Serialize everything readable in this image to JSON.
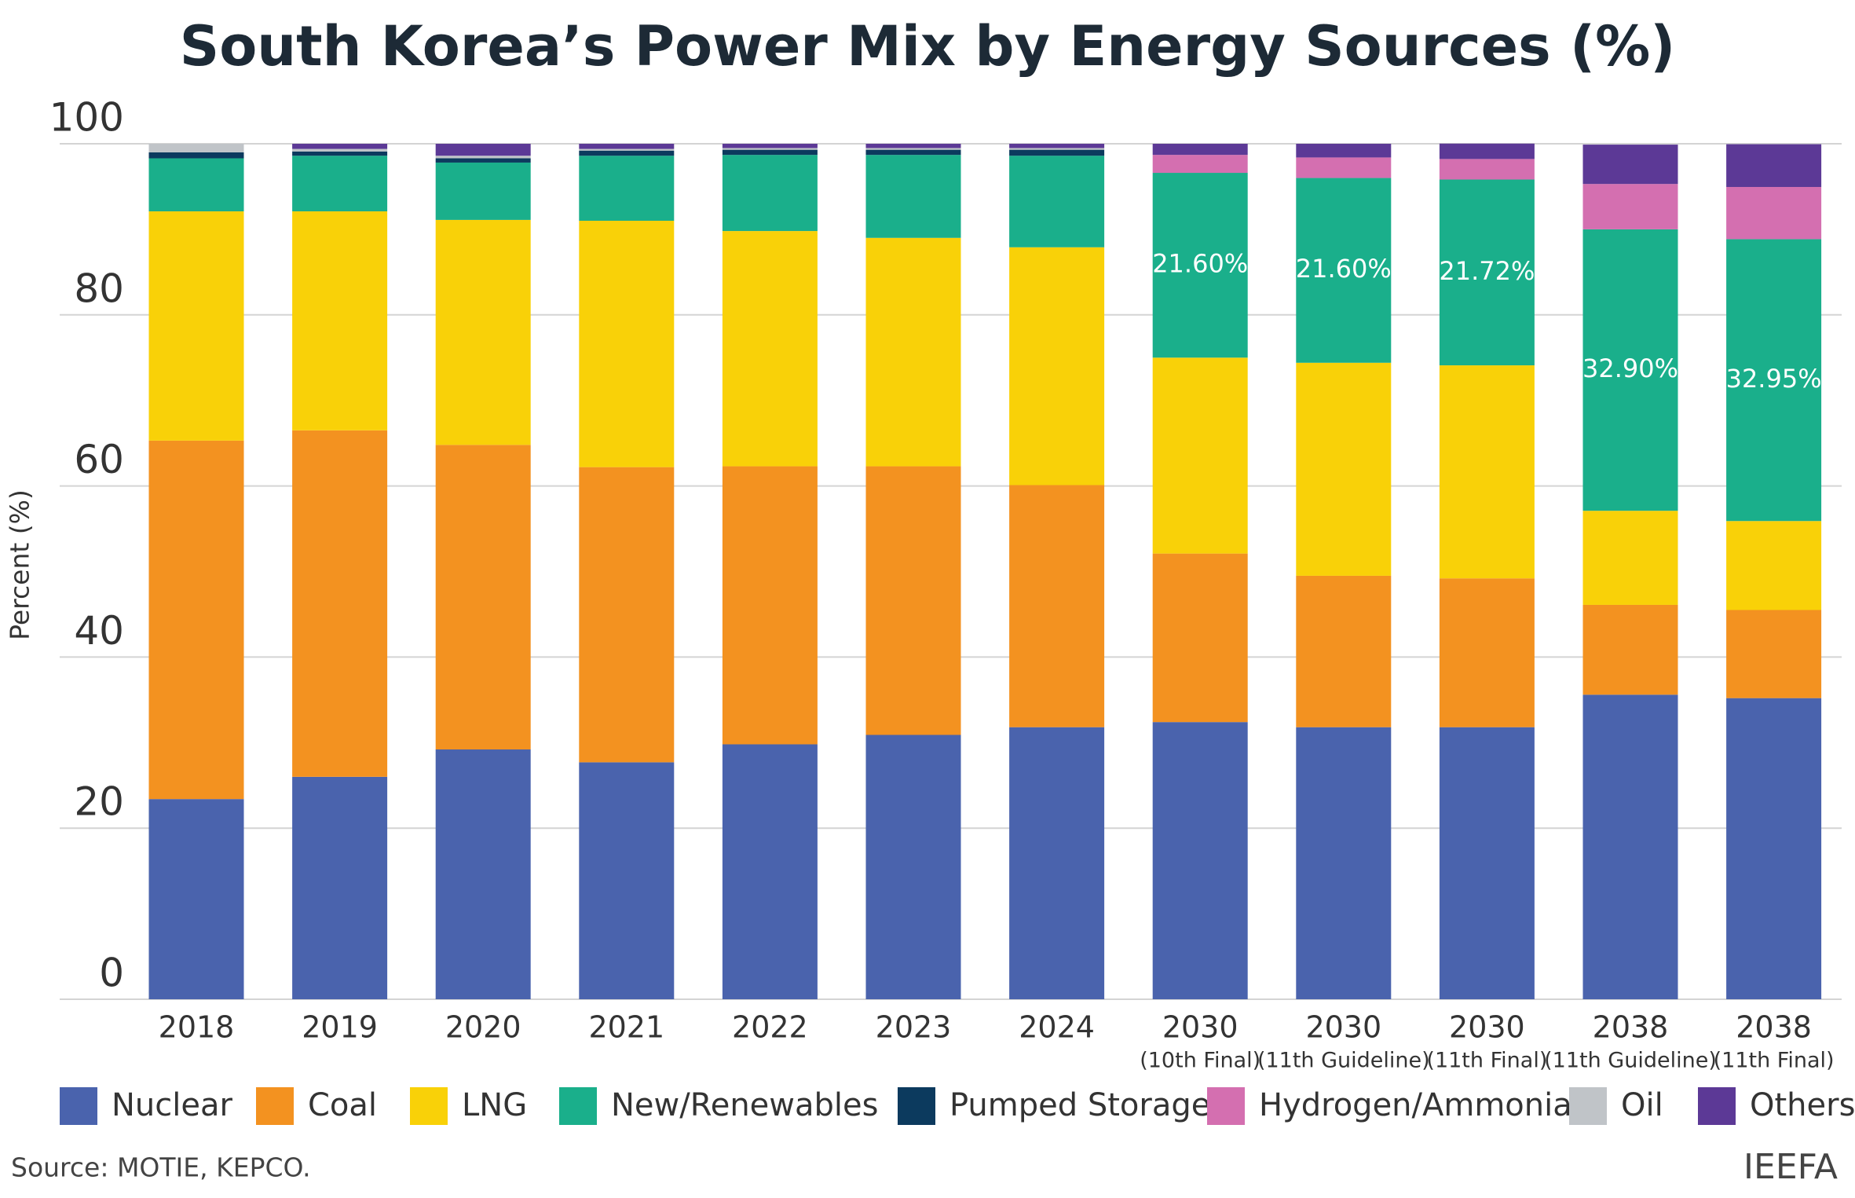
{
  "chart_data": {
    "type": "stacked_bar",
    "title": "South Korea’s Power Mix by Energy Sources (%)",
    "y_label": "Percent (%)",
    "source": "Source: MOTIE, KEPCO.",
    "brand": "IEEFA",
    "categories": [
      "2018",
      "2019",
      "2020",
      "2021",
      "2022",
      "2023",
      "2024",
      "2030",
      "2030",
      "2030",
      "2038",
      "2038"
    ],
    "category_notes": [
      null,
      null,
      null,
      null,
      null,
      null,
      null,
      "(10th Final)",
      "(11th Guideline)",
      "(11th Final)",
      "(11th Guideline)",
      "(11th Final)"
    ],
    "ylim": [
      0,
      100
    ],
    "yticks": [
      0,
      20,
      40,
      60,
      80,
      100
    ],
    "grid": true,
    "series": [
      {
        "name": "Nuclear",
        "color": "#4a63ad",
        "values": [
          23.4,
          26.0,
          29.2,
          27.7,
          29.8,
          30.9,
          31.8,
          32.4,
          31.8,
          31.8,
          35.6,
          35.2
        ]
      },
      {
        "name": "Coal",
        "color": "#f39220",
        "values": [
          41.9,
          40.5,
          35.6,
          34.5,
          32.5,
          31.4,
          28.3,
          19.7,
          17.7,
          17.4,
          10.5,
          10.3
        ]
      },
      {
        "name": "LNG",
        "color": "#f9d108",
        "values": [
          26.8,
          25.6,
          26.3,
          28.8,
          27.5,
          26.7,
          27.8,
          22.9,
          24.9,
          24.9,
          11.0,
          10.4
        ]
      },
      {
        "name": "New/Renewables",
        "color": "#1aaf8b",
        "values": [
          6.2,
          6.5,
          6.7,
          7.6,
          8.9,
          9.7,
          10.7,
          21.6,
          21.6,
          21.72,
          32.9,
          32.95
        ],
        "value_labels": [
          null,
          null,
          null,
          null,
          null,
          null,
          null,
          "21.60%",
          "21.60%",
          "21.72%",
          "32.90%",
          "32.95%"
        ]
      },
      {
        "name": "Pumped Storage",
        "color": "#0c3a5e",
        "values": [
          0.7,
          0.5,
          0.5,
          0.6,
          0.6,
          0.6,
          0.7,
          null,
          null,
          null,
          null,
          null
        ]
      },
      {
        "name": "Hydrogen/Ammonia",
        "color": "#d46fb0",
        "values": [
          null,
          null,
          null,
          null,
          null,
          null,
          null,
          2.1,
          2.4,
          2.4,
          5.3,
          6.1
        ]
      },
      {
        "name": "Oil",
        "color": "#c0c4c8",
        "values": [
          1.0,
          0.3,
          0.3,
          0.2,
          0.2,
          0.2,
          0.2,
          null,
          null,
          null,
          null,
          null
        ]
      },
      {
        "name": "Others",
        "color": "#5c3996",
        "values": [
          null,
          0.6,
          1.4,
          0.6,
          0.5,
          0.5,
          0.5,
          1.3,
          1.6,
          1.8,
          4.6,
          5.0
        ]
      }
    ]
  }
}
